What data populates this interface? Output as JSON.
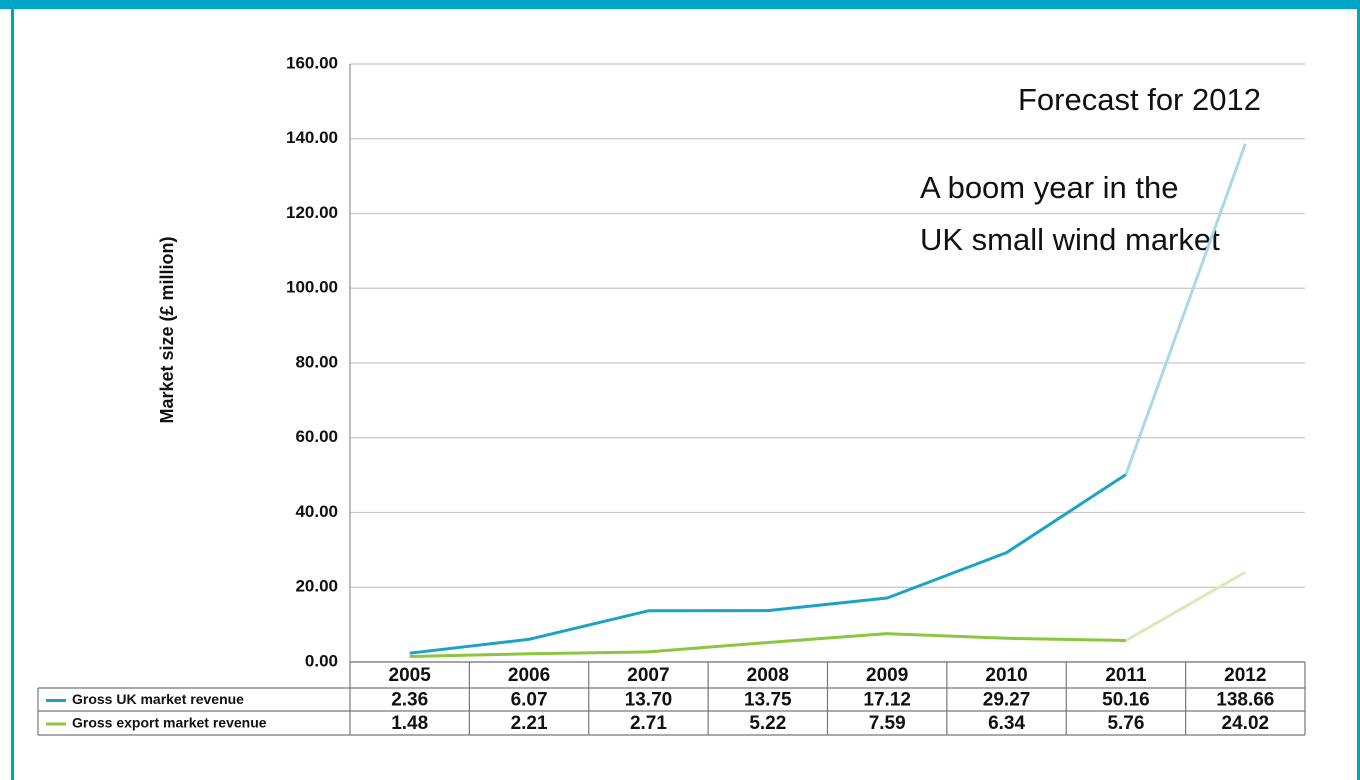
{
  "chart_data": {
    "type": "line",
    "y_label": "Market size (£ million)",
    "annotations": [
      "Forecast for 2012",
      "A boom year in the",
      "UK small wind market"
    ],
    "categories": [
      "2005",
      "2006",
      "2007",
      "2008",
      "2009",
      "2010",
      "2011",
      "2012"
    ],
    "series": [
      {
        "name": "Gross UK market revenue",
        "color": "#1ba3c6",
        "forecast_color": "#a9d9e9",
        "values": [
          2.36,
          6.07,
          13.7,
          13.75,
          17.12,
          29.27,
          50.16,
          138.66
        ],
        "value_labels": [
          "2.36",
          "6.07",
          "13.70",
          "13.75",
          "17.12",
          "29.27",
          "50.16",
          "138.66"
        ]
      },
      {
        "name": "Gross export market revenue",
        "color": "#8cc63f",
        "forecast_color": "#d5ebb8",
        "values": [
          1.48,
          2.21,
          2.71,
          5.22,
          7.59,
          6.34,
          5.76,
          24.02
        ],
        "value_labels": [
          "1.48",
          "2.21",
          "2.71",
          "5.22",
          "7.59",
          "6.34",
          "5.76",
          "24.02"
        ]
      }
    ],
    "ylim": [
      0,
      160
    ],
    "yticks": [
      {
        "value": 0,
        "label": "0.00"
      },
      {
        "value": 20,
        "label": "20.00"
      },
      {
        "value": 40,
        "label": "40.00"
      },
      {
        "value": 60,
        "label": "60.00"
      },
      {
        "value": 80,
        "label": "80.00"
      },
      {
        "value": 100,
        "label": "100.00"
      },
      {
        "value": 120,
        "label": "120.00"
      },
      {
        "value": 140,
        "label": "140.00"
      },
      {
        "value": 160,
        "label": "160.00"
      }
    ],
    "grid": true
  }
}
